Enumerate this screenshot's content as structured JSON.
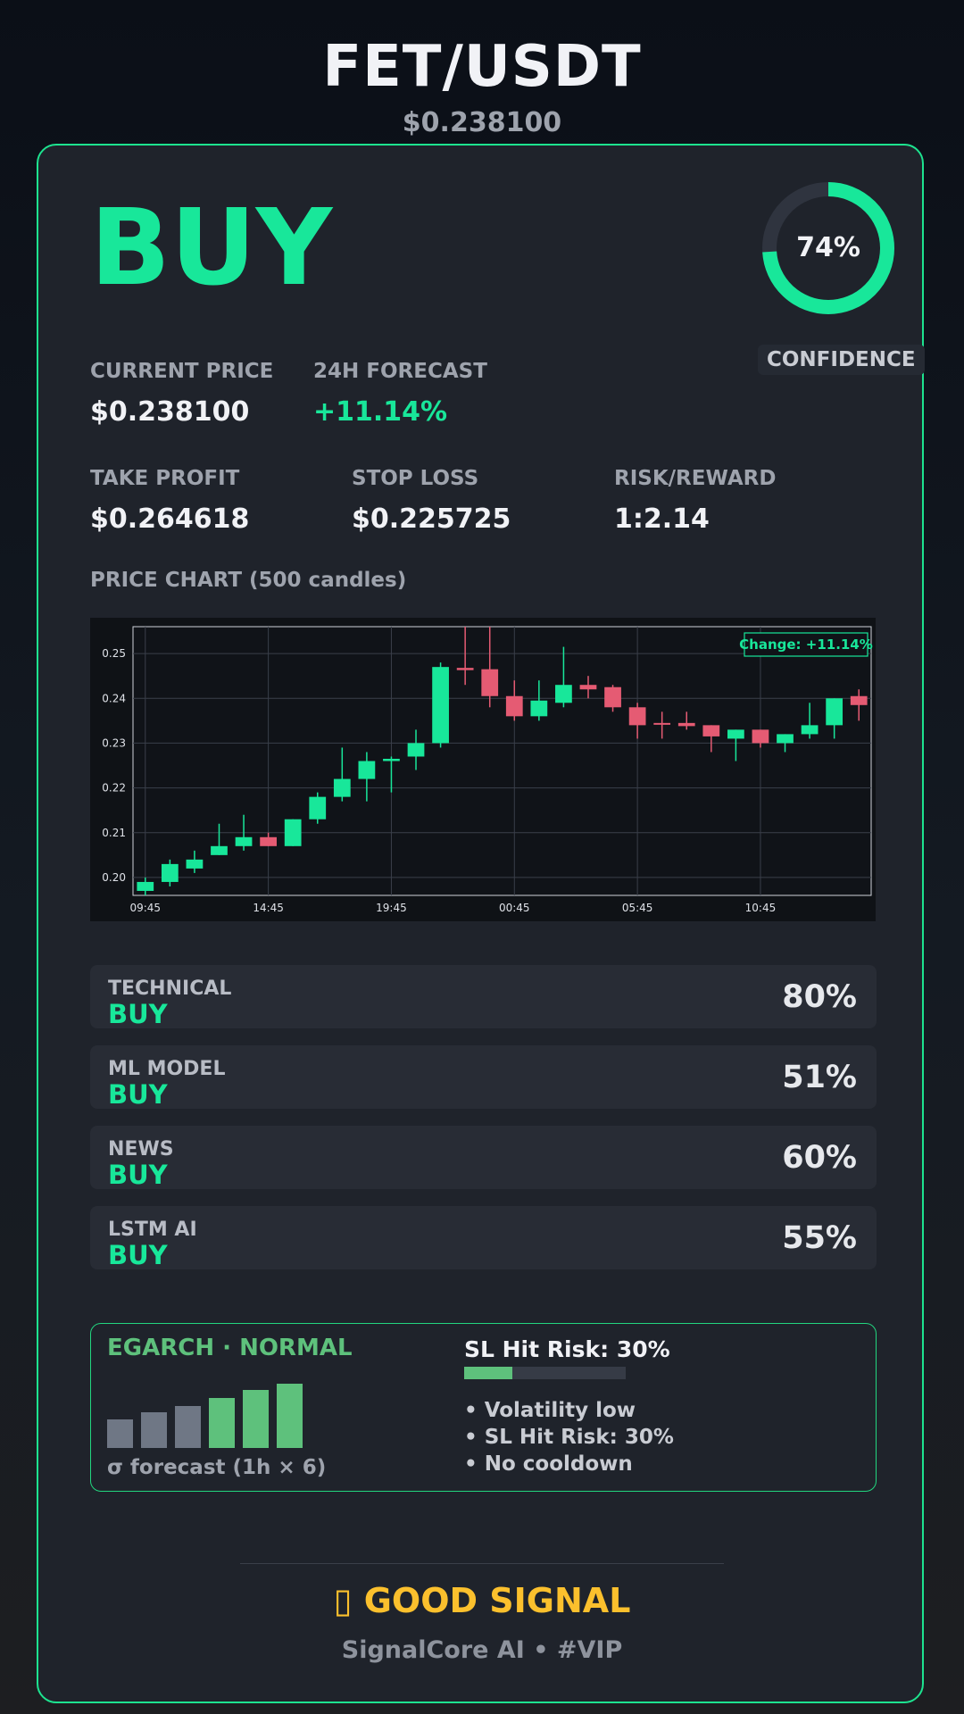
{
  "header": {
    "pair": "FET/USDT",
    "price": "$0.238100"
  },
  "signal": {
    "action": "BUY",
    "confidence_pct": 74,
    "confidence_text": "74%",
    "confidence_label": "CONFIDENCE"
  },
  "stats": {
    "current_price_label": "CURRENT PRICE",
    "current_price": "$0.238100",
    "forecast_label": "24H FORECAST",
    "forecast": "+11.14%",
    "take_profit_label": "TAKE PROFIT",
    "take_profit": "$0.264618",
    "stop_loss_label": "STOP LOSS",
    "stop_loss": "$0.225725",
    "risk_reward_label": "RISK/REWARD",
    "risk_reward": "1:2.14"
  },
  "chart_title": "PRICE CHART (500 candles)",
  "chart_data": {
    "type": "candlestick",
    "annotation": "Change: +11.14%",
    "ylim": [
      0.196,
      0.256
    ],
    "yticks": [
      0.2,
      0.21,
      0.22,
      0.23,
      0.24,
      0.25
    ],
    "ytick_labels": [
      "0.20",
      "0.21",
      "0.22",
      "0.23",
      "0.24",
      "0.25"
    ],
    "xtick_labels": [
      "09:45",
      "14:45",
      "19:45",
      "00:45",
      "05:45",
      "10:45"
    ],
    "xtick_index": [
      0,
      5,
      10,
      15,
      20,
      25
    ],
    "grid": true,
    "candles": [
      {
        "o": 0.197,
        "h": 0.2,
        "l": 0.196,
        "c": 0.199
      },
      {
        "o": 0.199,
        "h": 0.204,
        "l": 0.198,
        "c": 0.203
      },
      {
        "o": 0.202,
        "h": 0.206,
        "l": 0.201,
        "c": 0.204
      },
      {
        "o": 0.205,
        "h": 0.212,
        "l": 0.205,
        "c": 0.207
      },
      {
        "o": 0.207,
        "h": 0.214,
        "l": 0.206,
        "c": 0.209
      },
      {
        "o": 0.209,
        "h": 0.21,
        "l": 0.207,
        "c": 0.207
      },
      {
        "o": 0.207,
        "h": 0.213,
        "l": 0.207,
        "c": 0.213
      },
      {
        "o": 0.213,
        "h": 0.219,
        "l": 0.212,
        "c": 0.218
      },
      {
        "o": 0.218,
        "h": 0.229,
        "l": 0.217,
        "c": 0.222
      },
      {
        "o": 0.222,
        "h": 0.228,
        "l": 0.217,
        "c": 0.226
      },
      {
        "o": 0.226,
        "h": 0.227,
        "l": 0.219,
        "c": 0.2265
      },
      {
        "o": 0.227,
        "h": 0.233,
        "l": 0.224,
        "c": 0.23
      },
      {
        "o": 0.23,
        "h": 0.248,
        "l": 0.229,
        "c": 0.247
      },
      {
        "o": 0.2468,
        "h": 0.256,
        "l": 0.243,
        "c": 0.2463
      },
      {
        "o": 0.2465,
        "h": 0.256,
        "l": 0.238,
        "c": 0.2405
      },
      {
        "o": 0.2405,
        "h": 0.244,
        "l": 0.235,
        "c": 0.236
      },
      {
        "o": 0.236,
        "h": 0.244,
        "l": 0.235,
        "c": 0.2395
      },
      {
        "o": 0.239,
        "h": 0.2515,
        "l": 0.238,
        "c": 0.243
      },
      {
        "o": 0.243,
        "h": 0.245,
        "l": 0.24,
        "c": 0.242
      },
      {
        "o": 0.2425,
        "h": 0.243,
        "l": 0.237,
        "c": 0.238
      },
      {
        "o": 0.238,
        "h": 0.239,
        "l": 0.231,
        "c": 0.234
      },
      {
        "o": 0.2345,
        "h": 0.237,
        "l": 0.231,
        "c": 0.2343
      },
      {
        "o": 0.2345,
        "h": 0.237,
        "l": 0.233,
        "c": 0.2338
      },
      {
        "o": 0.234,
        "h": 0.234,
        "l": 0.228,
        "c": 0.2315
      },
      {
        "o": 0.231,
        "h": 0.233,
        "l": 0.226,
        "c": 0.233
      },
      {
        "o": 0.233,
        "h": 0.233,
        "l": 0.229,
        "c": 0.23
      },
      {
        "o": 0.23,
        "h": 0.232,
        "l": 0.228,
        "c": 0.232
      },
      {
        "o": 0.232,
        "h": 0.239,
        "l": 0.231,
        "c": 0.234
      },
      {
        "o": 0.234,
        "h": 0.24,
        "l": 0.231,
        "c": 0.24
      },
      {
        "o": 0.2405,
        "h": 0.242,
        "l": 0.235,
        "c": 0.2385
      }
    ]
  },
  "components": [
    {
      "label": "TECHNICAL",
      "signal": "BUY",
      "pct": "80%"
    },
    {
      "label": "ML MODEL",
      "signal": "BUY",
      "pct": "51%"
    },
    {
      "label": "NEWS",
      "signal": "BUY",
      "pct": "60%"
    },
    {
      "label": "LSTM AI",
      "signal": "BUY",
      "pct": "55%"
    }
  ],
  "egarch": {
    "title": "EGARCH · NORMAL",
    "caption": "σ forecast (1h × 6)",
    "sigma_bars": [
      0.45,
      0.55,
      0.65,
      0.78,
      0.9,
      1.0
    ],
    "sl_title": "SL Hit Risk: 30%",
    "sl_risk_fraction": 0.3,
    "bullets": [
      "• Volatility low",
      "• SL Hit Risk: 30%",
      "• No cooldown"
    ]
  },
  "footer": {
    "verdict": "▯ GOOD SIGNAL",
    "brand": "SignalCore AI • #VIP"
  },
  "colors": {
    "up": "#18e79a",
    "down": "#e55b73",
    "accent": "#1de38f",
    "gold": "#fbc02d"
  }
}
